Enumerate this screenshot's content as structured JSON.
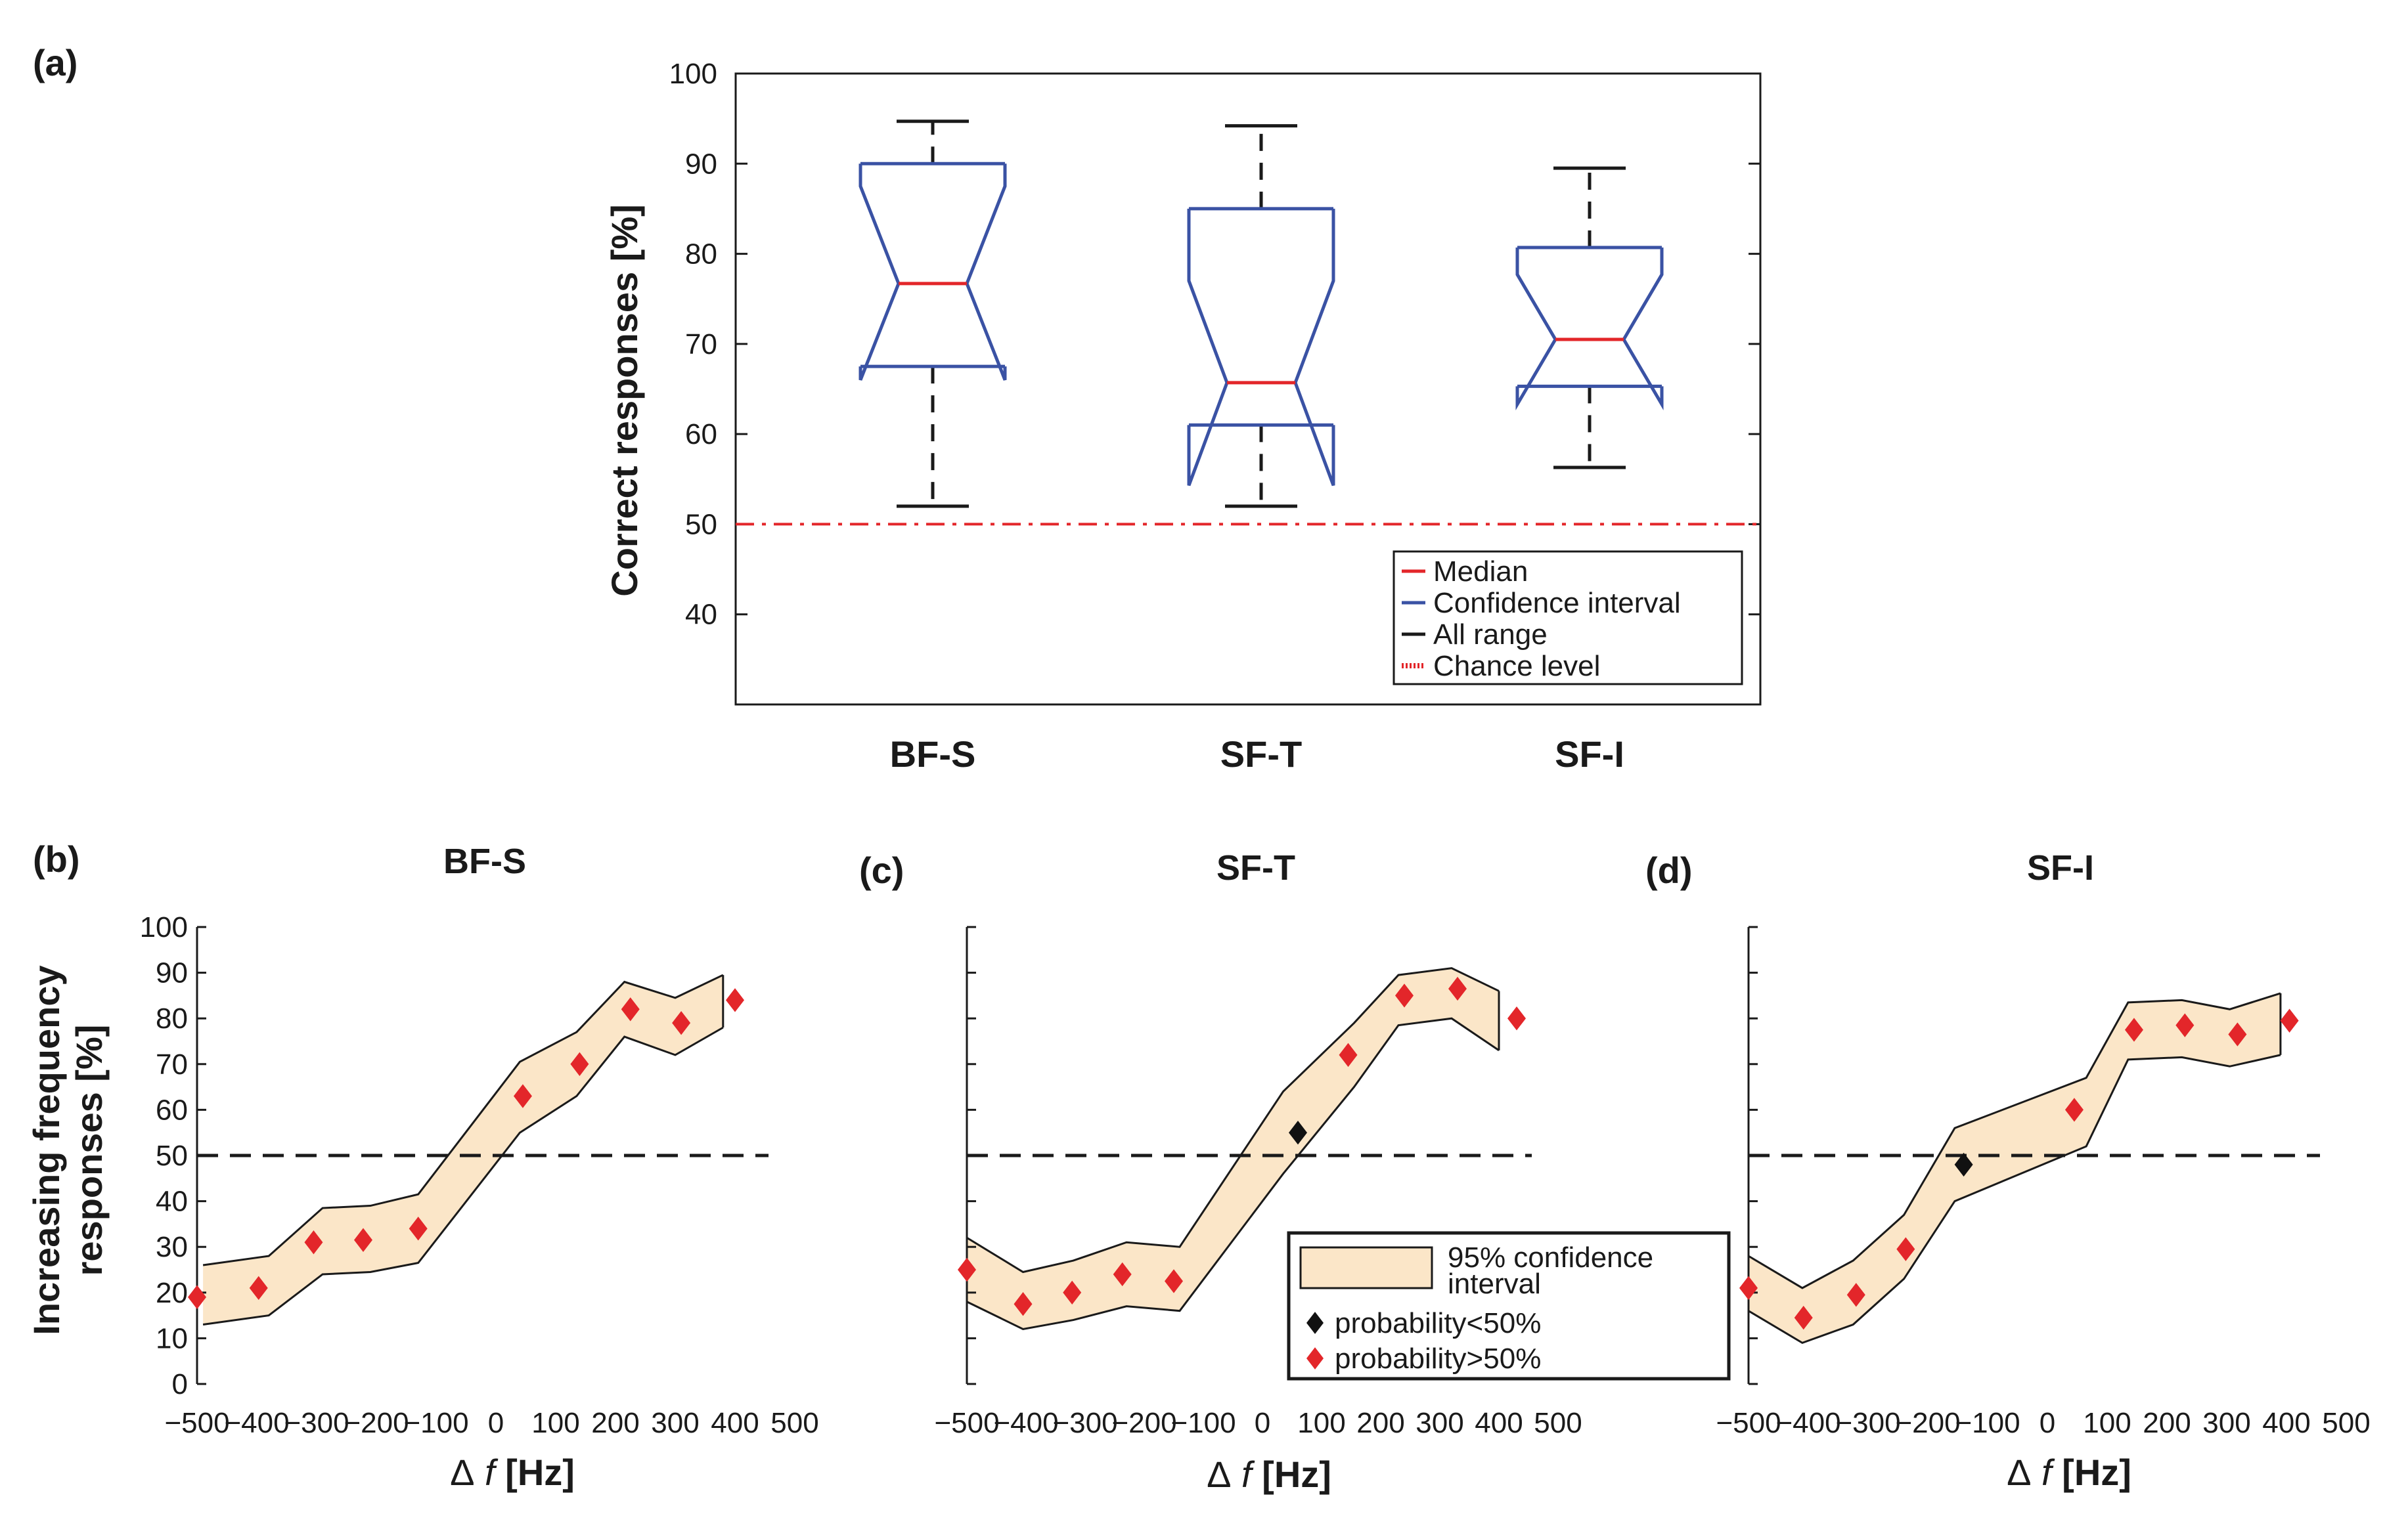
{
  "chart_data": [
    {
      "id": "a",
      "panel_label": "(a)",
      "type": "boxplot",
      "title": "",
      "ylabel": "Correct responses [%]",
      "ylim": [
        30,
        100
      ],
      "yticks": [
        40,
        50,
        60,
        70,
        80,
        90,
        100
      ],
      "categories": [
        "BF-S",
        "SF-T",
        "SF-I"
      ],
      "boxes": [
        {
          "name": "BF-S",
          "q1": 67.5,
          "median": 76.7,
          "q3": 90,
          "notch_low": 66,
          "notch_high": 87.5,
          "whisker_low": 52,
          "whisker_high": 94.7
        },
        {
          "name": "SF-T",
          "q1": 61,
          "median": 65.7,
          "q3": 85,
          "notch_low": 54.3,
          "notch_high": 77,
          "whisker_low": 52,
          "whisker_high": 94.2
        },
        {
          "name": "SF-I",
          "q1": 65.3,
          "median": 70.5,
          "q3": 80.7,
          "notch_low": 63.3,
          "notch_high": 77.7,
          "whisker_low": 56.3,
          "whisker_high": 89.5
        }
      ],
      "chance_level": 50,
      "legend": [
        {
          "label": "Median",
          "color": "#e3262a",
          "style": "solid"
        },
        {
          "label": "Confidence interval",
          "color": "#3a52a4",
          "style": "solid"
        },
        {
          "label": "All range",
          "color": "#1a1a1a",
          "style": "solid"
        },
        {
          "label": "Chance level",
          "color": "#e3262a",
          "style": "dotted"
        }
      ],
      "legend_position": "bottom-right"
    },
    {
      "id": "b",
      "panel_label": "(b)",
      "type": "line",
      "title": "BF-S",
      "xlabel_delta": "Δ",
      "xlabel_var": "f",
      "xlabel_unit": "[Hz]",
      "ylabel_line1": "Increasing frequency",
      "ylabel_line2": "responses [%]",
      "show_ytick_labels": true,
      "xlim": [
        -500,
        500
      ],
      "ylim": [
        0,
        100
      ],
      "xticks": [
        -500,
        -400,
        -300,
        -200,
        -100,
        0,
        100,
        200,
        300,
        400,
        500
      ],
      "xtick_labels": [
        "−500",
        "−400",
        "−300",
        "−200",
        "−100",
        "0",
        "100",
        "200",
        "300",
        "400",
        "500"
      ],
      "yticks": [
        0,
        10,
        20,
        30,
        40,
        50,
        60,
        70,
        80,
        90,
        100
      ],
      "reference_line": 50,
      "x": [
        -490,
        -380,
        -290,
        -210,
        -130,
        40,
        135,
        215,
        300,
        380
      ],
      "ci_upper": [
        26,
        28,
        38.5,
        39,
        41.5,
        70.5,
        77,
        88,
        84.5,
        89.5
      ],
      "ci_lower": [
        13,
        15,
        24,
        24.5,
        26.5,
        55,
        63,
        76,
        72,
        78
      ],
      "points": [
        {
          "x": -500,
          "y": 19,
          "marker": "red"
        },
        {
          "x": -397,
          "y": 21,
          "marker": "red"
        },
        {
          "x": -305,
          "y": 31,
          "marker": "red"
        },
        {
          "x": -222,
          "y": 31.5,
          "marker": "red"
        },
        {
          "x": -130,
          "y": 34,
          "marker": "red"
        },
        {
          "x": 45,
          "y": 63,
          "marker": "red"
        },
        {
          "x": 140,
          "y": 70,
          "marker": "red"
        },
        {
          "x": 225,
          "y": 82,
          "marker": "red"
        },
        {
          "x": 310,
          "y": 79,
          "marker": "red"
        },
        {
          "x": 400,
          "y": 84,
          "marker": "red"
        }
      ]
    },
    {
      "id": "c",
      "panel_label": "(c)",
      "type": "line",
      "title": "SF-T",
      "xlabel_delta": "Δ",
      "xlabel_var": "f",
      "xlabel_unit": "[Hz]",
      "show_ytick_labels": false,
      "xlim": [
        -500,
        500
      ],
      "ylim": [
        0,
        100
      ],
      "xticks": [
        -500,
        -400,
        -300,
        -200,
        -100,
        0,
        100,
        200,
        300,
        400,
        500
      ],
      "xtick_labels": [
        "−500",
        "−400",
        "−300",
        "−200",
        "−100",
        "0",
        "100",
        "200",
        "300",
        "400",
        "500"
      ],
      "yticks": [
        0,
        10,
        20,
        30,
        40,
        50,
        60,
        70,
        80,
        90,
        100
      ],
      "reference_line": 50,
      "x": [
        -500,
        -405,
        -320,
        -230,
        -140,
        35,
        155,
        230,
        320,
        400
      ],
      "ci_upper": [
        32,
        24.5,
        27,
        31,
        30,
        64,
        79,
        89.5,
        91,
        86
      ],
      "ci_lower": [
        18,
        12,
        14,
        17,
        16,
        46,
        65,
        78.5,
        80,
        73
      ],
      "points": [
        {
          "x": -500,
          "y": 25,
          "marker": "red"
        },
        {
          "x": -405,
          "y": 17.5,
          "marker": "red"
        },
        {
          "x": -322,
          "y": 20,
          "marker": "red"
        },
        {
          "x": -237,
          "y": 24,
          "marker": "red"
        },
        {
          "x": -150,
          "y": 22.5,
          "marker": "red"
        },
        {
          "x": 60,
          "y": 55,
          "marker": "black"
        },
        {
          "x": 145,
          "y": 72,
          "marker": "red"
        },
        {
          "x": 240,
          "y": 85,
          "marker": "red"
        },
        {
          "x": 330,
          "y": 86.5,
          "marker": "red"
        },
        {
          "x": 430,
          "y": 80,
          "marker": "red"
        }
      ],
      "legend": [
        {
          "label_line1": "95% confidence",
          "label_line2": "interval",
          "kind": "band"
        },
        {
          "label": "probability<50%",
          "kind": "marker",
          "color": "#111111"
        },
        {
          "label": "probability>50%",
          "kind": "marker",
          "color": "#e3262a"
        }
      ],
      "legend_position": "lower-right"
    },
    {
      "id": "d",
      "panel_label": "(d)",
      "type": "line",
      "title": "SF-I",
      "xlabel_delta": "Δ",
      "xlabel_var": "f",
      "xlabel_unit": "[Hz]",
      "show_ytick_labels": false,
      "xlim": [
        -500,
        500
      ],
      "ylim": [
        0,
        100
      ],
      "xticks": [
        -500,
        -400,
        -300,
        -200,
        -100,
        0,
        100,
        200,
        300,
        400,
        500
      ],
      "xtick_labels": [
        "−500",
        "−400",
        "−300",
        "−200",
        "−100",
        "0",
        "100",
        "200",
        "300",
        "400",
        "500"
      ],
      "yticks": [
        0,
        10,
        20,
        30,
        40,
        50,
        60,
        70,
        80,
        90,
        100
      ],
      "reference_line": 50,
      "x": [
        -500,
        -410,
        -325,
        -240,
        -155,
        65,
        135,
        225,
        305,
        390
      ],
      "ci_upper": [
        28,
        21,
        27,
        37,
        56,
        67,
        83.5,
        84,
        82,
        85.5
      ],
      "ci_lower": [
        16,
        9,
        13,
        23,
        40,
        52,
        71,
        71.5,
        69.5,
        72
      ],
      "points": [
        {
          "x": -500,
          "y": 21,
          "marker": "red"
        },
        {
          "x": -408,
          "y": 14.5,
          "marker": "red"
        },
        {
          "x": -320,
          "y": 19.5,
          "marker": "red"
        },
        {
          "x": -237,
          "y": 29.5,
          "marker": "red"
        },
        {
          "x": -140,
          "y": 48,
          "marker": "black"
        },
        {
          "x": 45,
          "y": 60,
          "marker": "red"
        },
        {
          "x": 145,
          "y": 77.5,
          "marker": "red"
        },
        {
          "x": 230,
          "y": 78.5,
          "marker": "red"
        },
        {
          "x": 318,
          "y": 76.5,
          "marker": "red"
        },
        {
          "x": 405,
          "y": 79.5,
          "marker": "red"
        }
      ]
    }
  ],
  "colors": {
    "median": "#e3262a",
    "ci_box": "#3a52a4",
    "whisker": "#1a1a1a",
    "chance": "#e3262a",
    "band_fill": "#fbe6c8",
    "band_stroke": "#1a1a1a",
    "marker_high": "#e3262a",
    "marker_low": "#111111",
    "axis": "#1a1a1a"
  }
}
